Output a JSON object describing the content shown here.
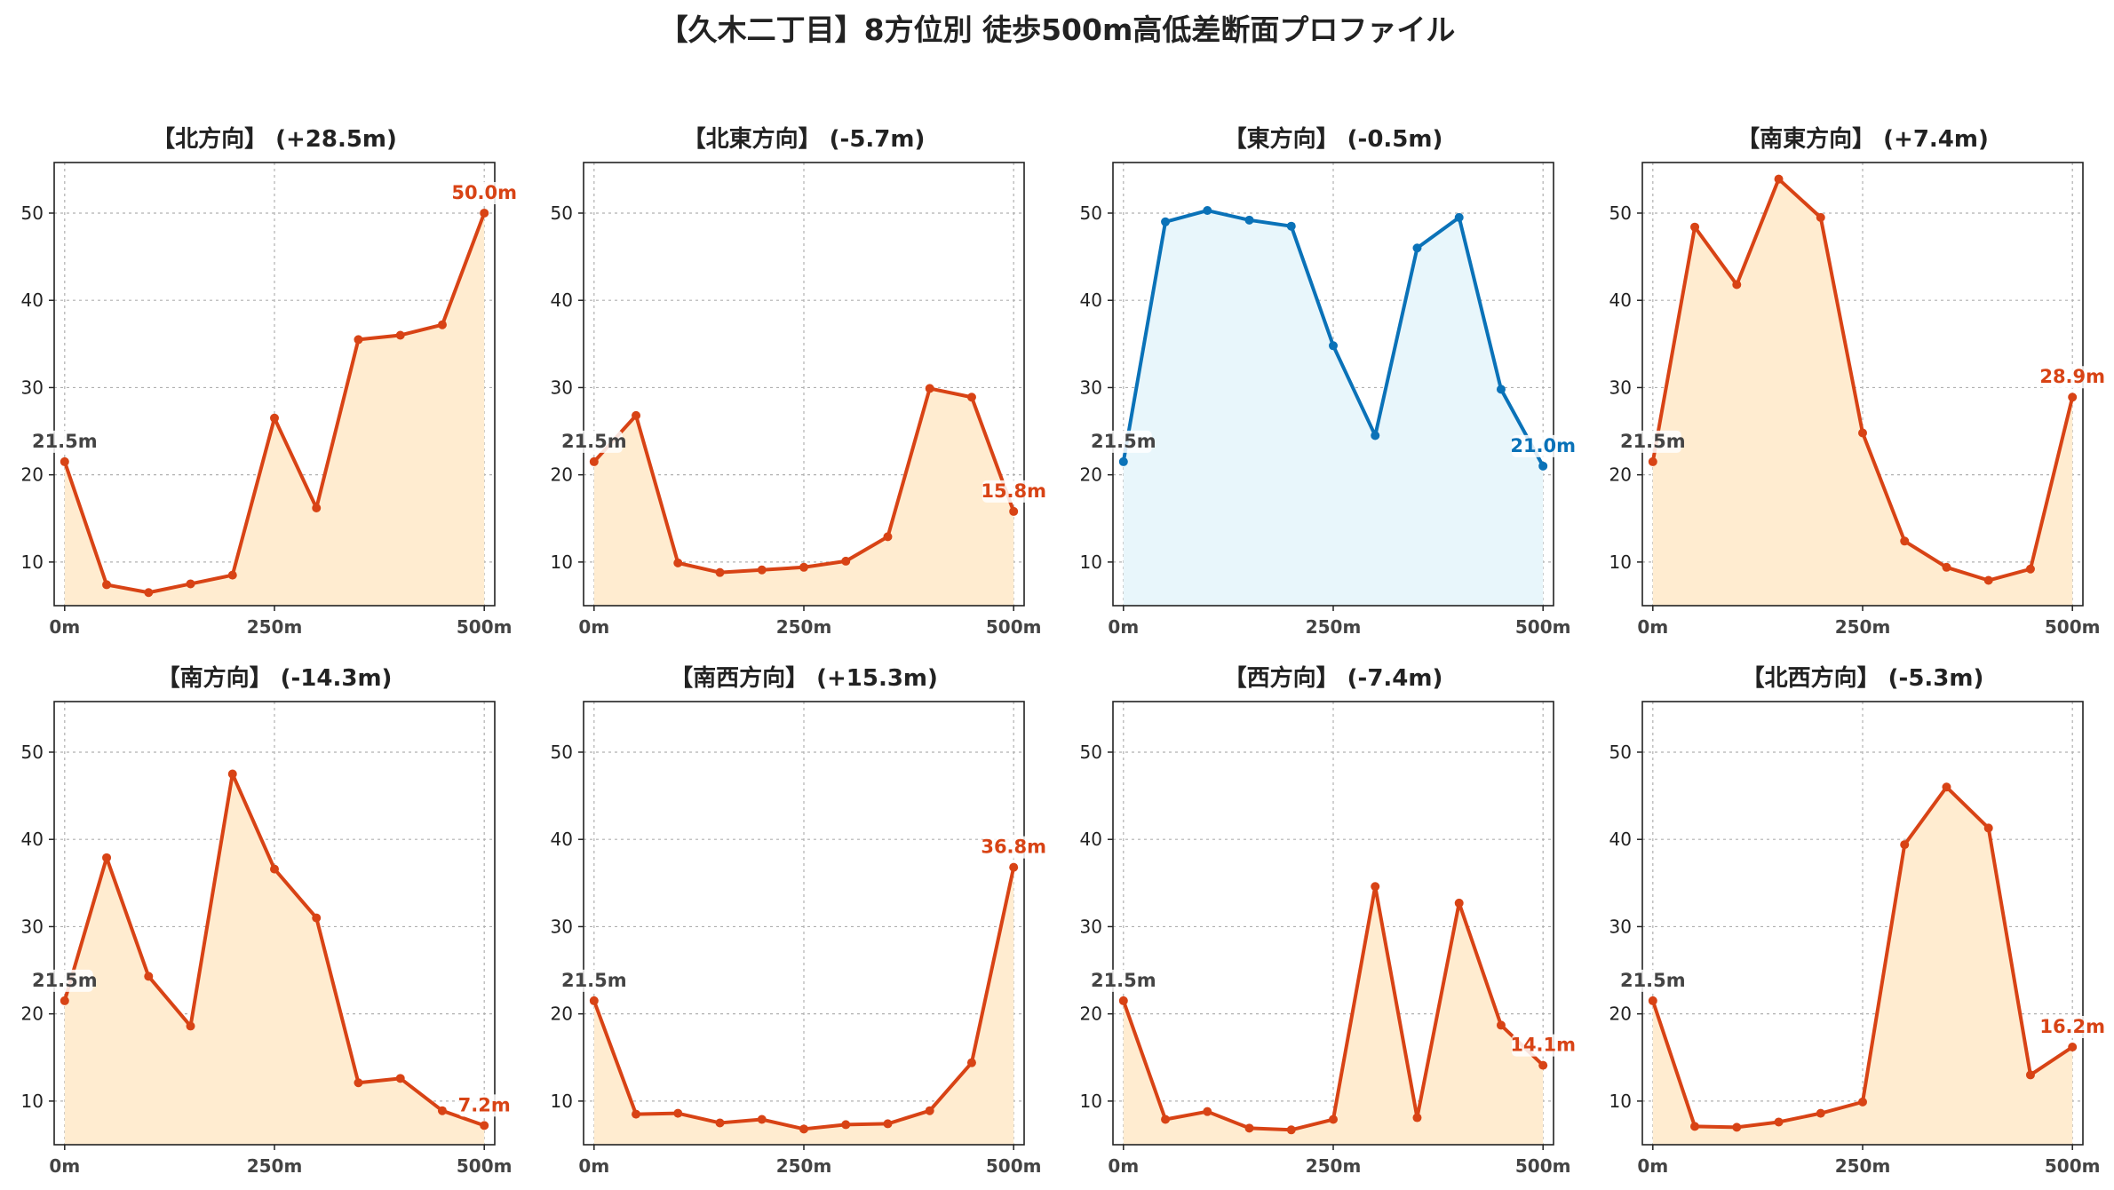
{
  "chart_data": {
    "type": "line",
    "title": "【久木二丁目】8方位別 徒歩500m高低差断面プロファイル",
    "x": [
      0,
      50,
      100,
      150,
      200,
      250,
      300,
      350,
      400,
      450,
      500
    ],
    "xticks": [
      0,
      250,
      500
    ],
    "xtick_labels": [
      "0m",
      "250m",
      "500m"
    ],
    "yticks": [
      10,
      20,
      30,
      40,
      50
    ],
    "ylim": [
      5,
      55.8
    ],
    "xlim": [
      -12.5,
      512.5
    ],
    "grid": true,
    "colors": {
      "up_line": "#d84315",
      "up_fill": "#ffecd0",
      "flat_line": "#0a72b8",
      "flat_fill": "#e8f6fb",
      "start_label": "#444444"
    },
    "panels": [
      {
        "title": "【北方向】 (+28.5m)",
        "style": "up",
        "values": [
          21.5,
          7.4,
          6.5,
          7.5,
          8.5,
          26.5,
          16.2,
          35.5,
          36.0,
          37.2,
          50.0
        ],
        "start_label": "21.5m",
        "end_label": "50.0m"
      },
      {
        "title": "【北東方向】 (-5.7m)",
        "style": "up",
        "values": [
          21.5,
          26.8,
          9.9,
          8.8,
          9.1,
          9.4,
          10.1,
          12.9,
          29.9,
          28.9,
          15.8
        ],
        "start_label": "21.5m",
        "end_label": "15.8m"
      },
      {
        "title": "【東方向】 (-0.5m)",
        "style": "flat",
        "values": [
          21.5,
          49.0,
          50.3,
          49.2,
          48.5,
          34.8,
          24.5,
          46.0,
          49.5,
          29.8,
          21.0
        ],
        "start_label": "21.5m",
        "end_label": "21.0m"
      },
      {
        "title": "【南東方向】 (+7.4m)",
        "style": "up",
        "values": [
          21.5,
          48.4,
          41.8,
          53.9,
          49.5,
          24.8,
          12.4,
          9.4,
          7.9,
          9.2,
          28.9
        ],
        "start_label": "21.5m",
        "end_label": "28.9m"
      },
      {
        "title": "【南方向】 (-14.3m)",
        "style": "up",
        "values": [
          21.5,
          37.9,
          24.3,
          18.6,
          47.5,
          36.6,
          31.0,
          12.1,
          12.6,
          8.9,
          7.2
        ],
        "start_label": "21.5m",
        "end_label": "7.2m"
      },
      {
        "title": "【南西方向】 (+15.3m)",
        "style": "up",
        "values": [
          21.5,
          8.5,
          8.6,
          7.5,
          7.9,
          6.8,
          7.3,
          7.4,
          8.9,
          14.4,
          36.8
        ],
        "start_label": "21.5m",
        "end_label": "36.8m"
      },
      {
        "title": "【西方向】 (-7.4m)",
        "style": "up",
        "values": [
          21.5,
          7.9,
          8.8,
          6.9,
          6.7,
          7.9,
          34.6,
          8.1,
          32.7,
          18.7,
          14.1
        ],
        "start_label": "21.5m",
        "end_label": "14.1m"
      },
      {
        "title": "【北西方向】 (-5.3m)",
        "style": "up",
        "values": [
          21.5,
          7.1,
          7.0,
          7.6,
          8.6,
          9.9,
          39.4,
          46.0,
          41.3,
          13.0,
          16.2
        ],
        "start_label": "21.5m",
        "end_label": "16.2m"
      }
    ]
  }
}
